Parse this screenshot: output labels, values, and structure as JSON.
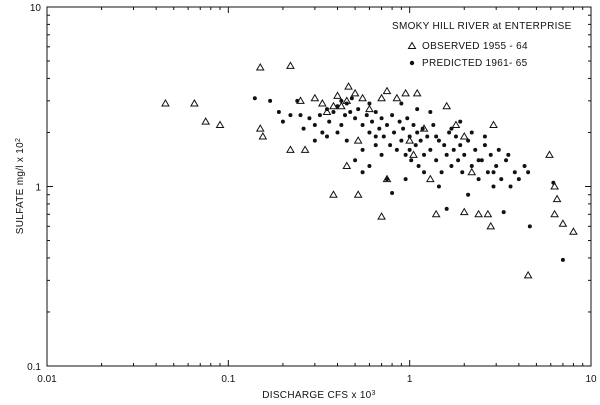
{
  "chart_data": {
    "type": "scatter",
    "title": "SMOKY HILL RIVER at ENTERPRISE",
    "xlabel": "DISCHARGE CFS x 10³",
    "ylabel": "SULFATE mg/l x 10²",
    "x_scale": "log",
    "y_scale": "log",
    "xlim": [
      0.01,
      10
    ],
    "ylim": [
      0.1,
      10
    ],
    "x_ticks": [
      "0.01",
      "0.1",
      "1",
      "10"
    ],
    "y_ticks": [
      "0.1",
      "1",
      "10"
    ],
    "grid": false,
    "legend_position": "top-right",
    "series": [
      {
        "name": "OBSERVED 1955 - 64",
        "marker": "open-triangle",
        "points": [
          [
            0.045,
            2.9
          ],
          [
            0.065,
            2.9
          ],
          [
            0.075,
            2.3
          ],
          [
            0.09,
            2.2
          ],
          [
            0.15,
            2.1
          ],
          [
            0.155,
            1.9
          ],
          [
            0.15,
            4.6
          ],
          [
            0.22,
            4.7
          ],
          [
            0.22,
            1.6
          ],
          [
            0.265,
            1.6
          ],
          [
            0.25,
            3.0
          ],
          [
            0.3,
            3.1
          ],
          [
            0.33,
            2.9
          ],
          [
            0.35,
            2.6
          ],
          [
            0.38,
            2.8
          ],
          [
            0.4,
            3.2
          ],
          [
            0.42,
            2.8
          ],
          [
            0.45,
            3.0
          ],
          [
            0.46,
            3.6
          ],
          [
            0.5,
            3.3
          ],
          [
            0.52,
            1.8
          ],
          [
            0.55,
            3.1
          ],
          [
            0.6,
            2.7
          ],
          [
            0.7,
            3.1
          ],
          [
            0.75,
            3.4
          ],
          [
            0.85,
            3.1
          ],
          [
            0.95,
            3.3
          ],
          [
            1.1,
            3.3
          ],
          [
            0.38,
            0.9
          ],
          [
            0.52,
            0.9
          ],
          [
            0.7,
            0.68
          ],
          [
            0.75,
            1.1
          ],
          [
            1.0,
            1.8
          ],
          [
            1.05,
            1.5
          ],
          [
            1.2,
            2.1
          ],
          [
            1.3,
            1.1
          ],
          [
            1.4,
            0.7
          ],
          [
            1.6,
            2.8
          ],
          [
            1.8,
            2.2
          ],
          [
            2.0,
            0.72
          ],
          [
            2.2,
            1.2
          ],
          [
            2.4,
            0.7
          ],
          [
            2.7,
            0.7
          ],
          [
            2.8,
            0.6
          ],
          [
            2.9,
            2.2
          ],
          [
            2.0,
            1.9
          ],
          [
            5.9,
            1.5
          ],
          [
            6.3,
            1.0
          ],
          [
            6.5,
            0.85
          ],
          [
            6.3,
            0.7
          ],
          [
            7.0,
            0.62
          ],
          [
            8.0,
            0.56
          ],
          [
            4.5,
            0.32
          ],
          [
            0.45,
            1.3
          ]
        ]
      },
      {
        "name": "PREDICTED 1961- 65",
        "marker": "filled-circle",
        "points": [
          [
            0.14,
            3.1
          ],
          [
            0.17,
            3.0
          ],
          [
            0.19,
            2.6
          ],
          [
            0.2,
            2.3
          ],
          [
            0.22,
            2.5
          ],
          [
            0.24,
            3.0
          ],
          [
            0.25,
            2.5
          ],
          [
            0.26,
            2.1
          ],
          [
            0.28,
            2.4
          ],
          [
            0.3,
            2.2
          ],
          [
            0.32,
            2.5
          ],
          [
            0.33,
            2.0
          ],
          [
            0.35,
            2.7
          ],
          [
            0.36,
            2.3
          ],
          [
            0.38,
            2.6
          ],
          [
            0.4,
            2.8
          ],
          [
            0.42,
            2.2
          ],
          [
            0.44,
            2.5
          ],
          [
            0.45,
            2.9
          ],
          [
            0.47,
            2.6
          ],
          [
            0.48,
            3.1
          ],
          [
            0.5,
            2.4
          ],
          [
            0.52,
            2.7
          ],
          [
            0.55,
            2.2
          ],
          [
            0.58,
            2.5
          ],
          [
            0.6,
            2.0
          ],
          [
            0.62,
            2.3
          ],
          [
            0.65,
            2.6
          ],
          [
            0.68,
            2.1
          ],
          [
            0.7,
            2.4
          ],
          [
            0.72,
            1.9
          ],
          [
            0.75,
            2.2
          ],
          [
            0.78,
            1.7
          ],
          [
            0.8,
            2.5
          ],
          [
            0.82,
            2.0
          ],
          [
            0.85,
            1.6
          ],
          [
            0.88,
            2.3
          ],
          [
            0.9,
            1.8
          ],
          [
            0.92,
            2.1
          ],
          [
            0.95,
            1.5
          ],
          [
            0.97,
            2.4
          ],
          [
            1.0,
            1.9
          ],
          [
            1.02,
            1.4
          ],
          [
            1.05,
            2.2
          ],
          [
            1.08,
            1.7
          ],
          [
            1.1,
            2.0
          ],
          [
            1.12,
            1.3
          ],
          [
            1.15,
            1.8
          ],
          [
            1.18,
            2.1
          ],
          [
            1.2,
            1.5
          ],
          [
            1.25,
            1.9
          ],
          [
            1.3,
            1.6
          ],
          [
            1.35,
            2.2
          ],
          [
            1.4,
            1.4
          ],
          [
            1.45,
            1.8
          ],
          [
            1.5,
            1.2
          ],
          [
            1.55,
            1.7
          ],
          [
            1.6,
            1.5
          ],
          [
            1.65,
            2.0
          ],
          [
            1.7,
            1.3
          ],
          [
            1.75,
            1.6
          ],
          [
            1.8,
            1.9
          ],
          [
            1.85,
            1.4
          ],
          [
            1.9,
            1.7
          ],
          [
            1.95,
            1.2
          ],
          [
            2.0,
            1.5
          ],
          [
            2.1,
            1.8
          ],
          [
            2.2,
            1.3
          ],
          [
            2.3,
            1.6
          ],
          [
            2.4,
            1.1
          ],
          [
            2.5,
            1.4
          ],
          [
            2.6,
            1.7
          ],
          [
            2.7,
            1.2
          ],
          [
            2.8,
            1.5
          ],
          [
            2.9,
            1.0
          ],
          [
            3.0,
            1.3
          ],
          [
            3.2,
            1.1
          ],
          [
            3.4,
            1.4
          ],
          [
            3.6,
            1.0
          ],
          [
            3.8,
            1.2
          ],
          [
            4.0,
            1.1
          ],
          [
            4.3,
            1.3
          ],
          [
            4.5,
            1.2
          ],
          [
            0.5,
            1.4
          ],
          [
            0.55,
            1.2
          ],
          [
            0.6,
            1.3
          ],
          [
            0.65,
            1.7
          ],
          [
            0.7,
            1.5
          ],
          [
            0.75,
            1.1
          ],
          [
            0.8,
            0.92
          ],
          [
            0.55,
            1.6
          ],
          [
            0.45,
            1.8
          ],
          [
            0.4,
            2.0
          ],
          [
            0.3,
            1.8
          ],
          [
            1.6,
            0.75
          ],
          [
            2.1,
            0.9
          ],
          [
            3.3,
            0.72
          ],
          [
            4.6,
            0.6
          ],
          [
            6.2,
            1.05
          ],
          [
            7.0,
            0.39
          ],
          [
            1.3,
            2.6
          ],
          [
            1.1,
            2.7
          ],
          [
            0.9,
            2.9
          ],
          [
            0.6,
            2.9
          ],
          [
            0.42,
            3.0
          ],
          [
            1.9,
            2.3
          ],
          [
            2.2,
            2.0
          ],
          [
            2.6,
            1.9
          ],
          [
            3.1,
            1.6
          ],
          [
            3.5,
            1.5
          ],
          [
            0.35,
            1.9
          ],
          [
            0.65,
            1.9
          ],
          [
            1.0,
            1.6
          ],
          [
            1.4,
            1.9
          ],
          [
            1.7,
            2.1
          ],
          [
            2.4,
            1.4
          ],
          [
            2.9,
            1.2
          ],
          [
            1.2,
            1.2
          ],
          [
            0.95,
            1.1
          ],
          [
            1.45,
            1.0
          ]
        ]
      }
    ]
  }
}
